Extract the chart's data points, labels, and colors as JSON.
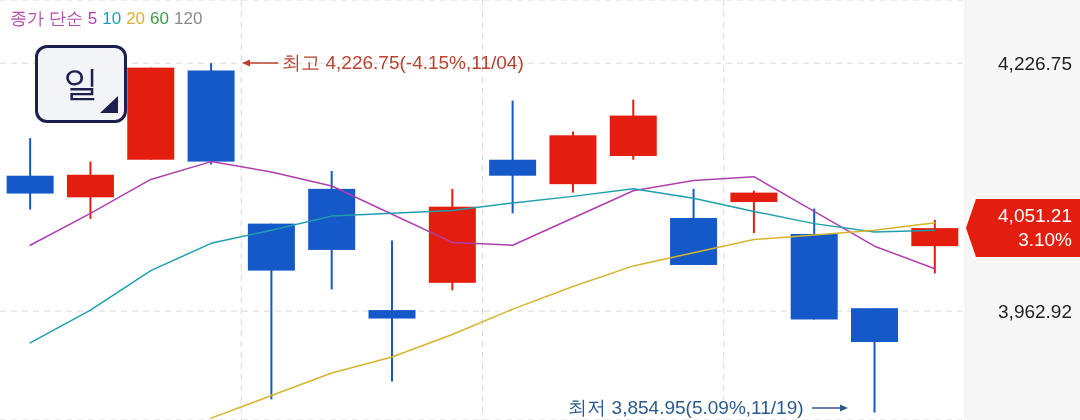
{
  "chart_data": {
    "type": "candlestick",
    "legend_title": "종가 단순",
    "categories": [
      null,
      null,
      null,
      null,
      null,
      null,
      null,
      null,
      null,
      null,
      null,
      null,
      null,
      null,
      null,
      null
    ],
    "ohlc": [
      [
        4107,
        4147,
        4071,
        4088
      ],
      [
        4084,
        4122,
        4061,
        4108
      ],
      [
        4124,
        4222,
        4124,
        4222
      ],
      [
        4219,
        4226.75,
        4119,
        4122
      ],
      [
        4056,
        4056,
        3869,
        4006
      ],
      [
        4093,
        4112,
        3986,
        4028
      ],
      [
        3964,
        4038,
        3888,
        3955
      ],
      [
        3993,
        4093,
        3985,
        4074
      ],
      [
        4124,
        4187,
        4067,
        4107
      ],
      [
        4098,
        4154,
        4089,
        4150
      ],
      [
        4128,
        4188,
        4124,
        4171
      ],
      [
        4062,
        4093,
        4012,
        4012
      ],
      [
        4079,
        4091,
        4046,
        4089
      ],
      [
        4045,
        4072,
        3954,
        3954
      ],
      [
        3966,
        3966,
        3854.95,
        3930
      ],
      [
        4032,
        4060,
        4003,
        4051.21
      ]
    ],
    "colors": [
      "#1559c8",
      "#e41e0e",
      "#e41e0e",
      "#1559c8",
      "#1559c8",
      "#1559c8",
      "#1559c8",
      "#e41e0e",
      "#1559c8",
      "#e41e0e",
      "#e41e0e",
      "#1559c8",
      "#e41e0e",
      "#1559c8",
      "#1559c8",
      "#e41e0e"
    ],
    "series": [
      {
        "name": "5",
        "type": "line",
        "color": "#ae3fae",
        "values": [
          4033,
          4067,
          4103,
          4122,
          4111,
          4096,
          4066,
          4036,
          4033,
          4062,
          4091,
          4102,
          4106,
          4069,
          4032,
          4008
        ]
      },
      {
        "name": "10",
        "type": "line",
        "color": "#1f9fae",
        "values": [
          3929,
          3964,
          4006,
          4035,
          4049,
          4064,
          4067,
          4070,
          4078,
          4085,
          4093,
          4083,
          4069,
          4056,
          4047,
          4049
        ]
      },
      {
        "name": "20",
        "type": "line",
        "color": "#d6b42e",
        "values": [
          null,
          null,
          null,
          3849,
          3873,
          3897,
          3914,
          3938,
          3965,
          3989,
          4011,
          4025,
          4039,
          4044,
          4049,
          4057
        ]
      },
      {
        "name": "60",
        "type": "line",
        "color": "#3e9a4a",
        "values": [
          null,
          null,
          null,
          null,
          null,
          null,
          null,
          null,
          null,
          null,
          null,
          null,
          null,
          null,
          null,
          null
        ]
      },
      {
        "name": "120",
        "type": "line",
        "color": "#8a8a8a",
        "values": [
          null,
          null,
          null,
          null,
          null,
          null,
          null,
          null,
          null,
          null,
          null,
          null,
          null,
          null,
          null,
          null
        ]
      }
    ],
    "ylim": [
      3847,
      4294
    ],
    "yticks": [
      {
        "value": 3962.92,
        "label": "3,962.92"
      },
      {
        "value": 4226.75,
        "label": "4,226.75"
      }
    ],
    "tick_labels": "y",
    "grid": true,
    "legend": "top left",
    "marker": "none",
    "annotations": [
      "일",
      "최고 4,226.75(-4.15%,11/04)",
      "최저 3,854.95(5.09%,11/19)",
      "4,051.21\n3.10%"
    ]
  }
}
